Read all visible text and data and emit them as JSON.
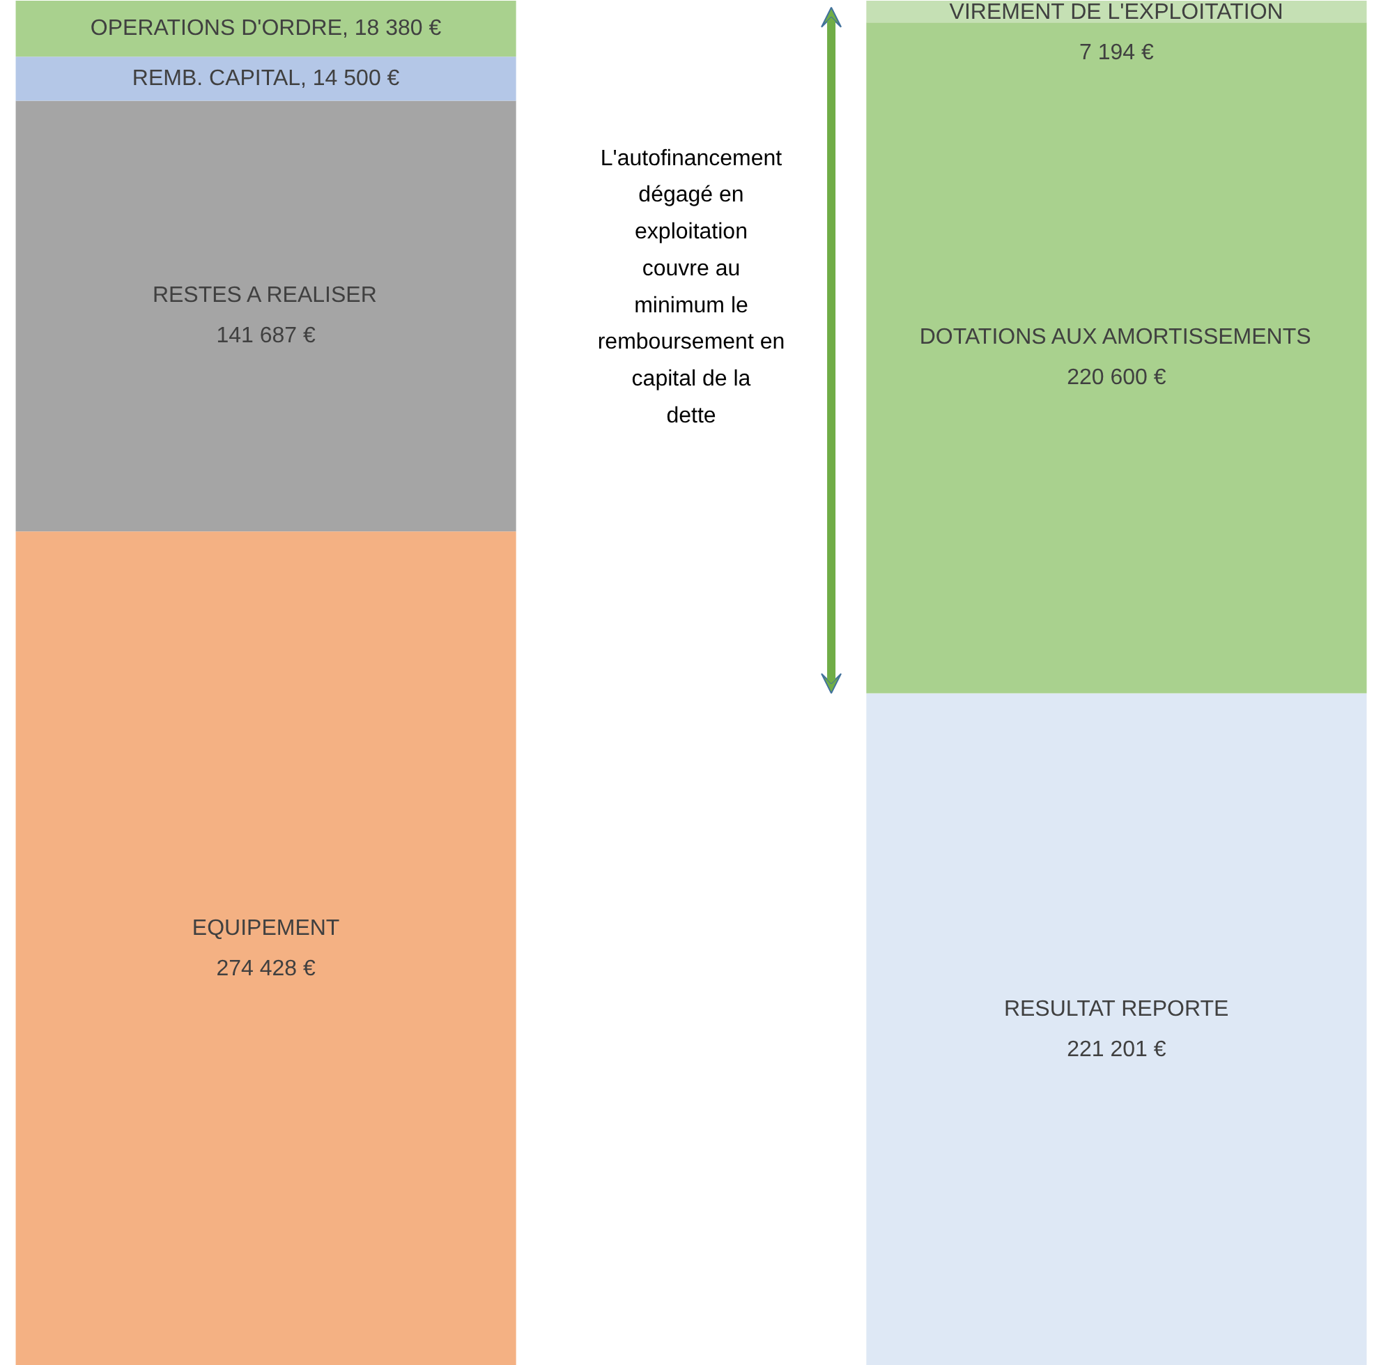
{
  "chart_data": {
    "type": "bar",
    "stacked": true,
    "categories": [
      null,
      null
    ],
    "data_labels": true,
    "series": [
      {
        "name": "EQUIPEMENT",
        "color": "#f4b183",
        "values": [
          274428,
          null
        ],
        "value_labels": [
          "274 428 €",
          null
        ]
      },
      {
        "name": "RESTES A REALISER",
        "color": "#a5a5a5",
        "values": [
          141687,
          null
        ],
        "value_labels": [
          "141 687 €",
          null
        ]
      },
      {
        "color": "#b4c7e7",
        "values": [
          14500,
          null
        ],
        "value_labels": [
          "REMB. CAPITAL, 14 500 €",
          null
        ]
      },
      {
        "color": "#a9d18e",
        "values": [
          18380,
          null
        ],
        "value_labels": [
          "OPERATIONS D'ORDRE, 18 380 €",
          null
        ]
      },
      {
        "name": "RESULTAT REPORTE",
        "color": "#dee8f5",
        "values": [
          null,
          221201
        ],
        "value_labels": [
          null,
          "221 201 €"
        ]
      },
      {
        "name": "DOTATIONS AUX AMORTISSEMENTS",
        "color": "#a9d18e",
        "values": [
          null,
          220600
        ],
        "value_labels": [
          null,
          "220 600 €"
        ]
      },
      {
        "name": "VIREMENT DE L'EXPLOITATION",
        "color": "#c5e0b4",
        "values": [
          null,
          7194
        ],
        "value_labels": [
          null,
          "7 194 €"
        ]
      }
    ],
    "annotations": [
      "L'autofinancement dégagé en exploitation couvre au minimum le remboursement en capital de la dette"
    ]
  }
}
